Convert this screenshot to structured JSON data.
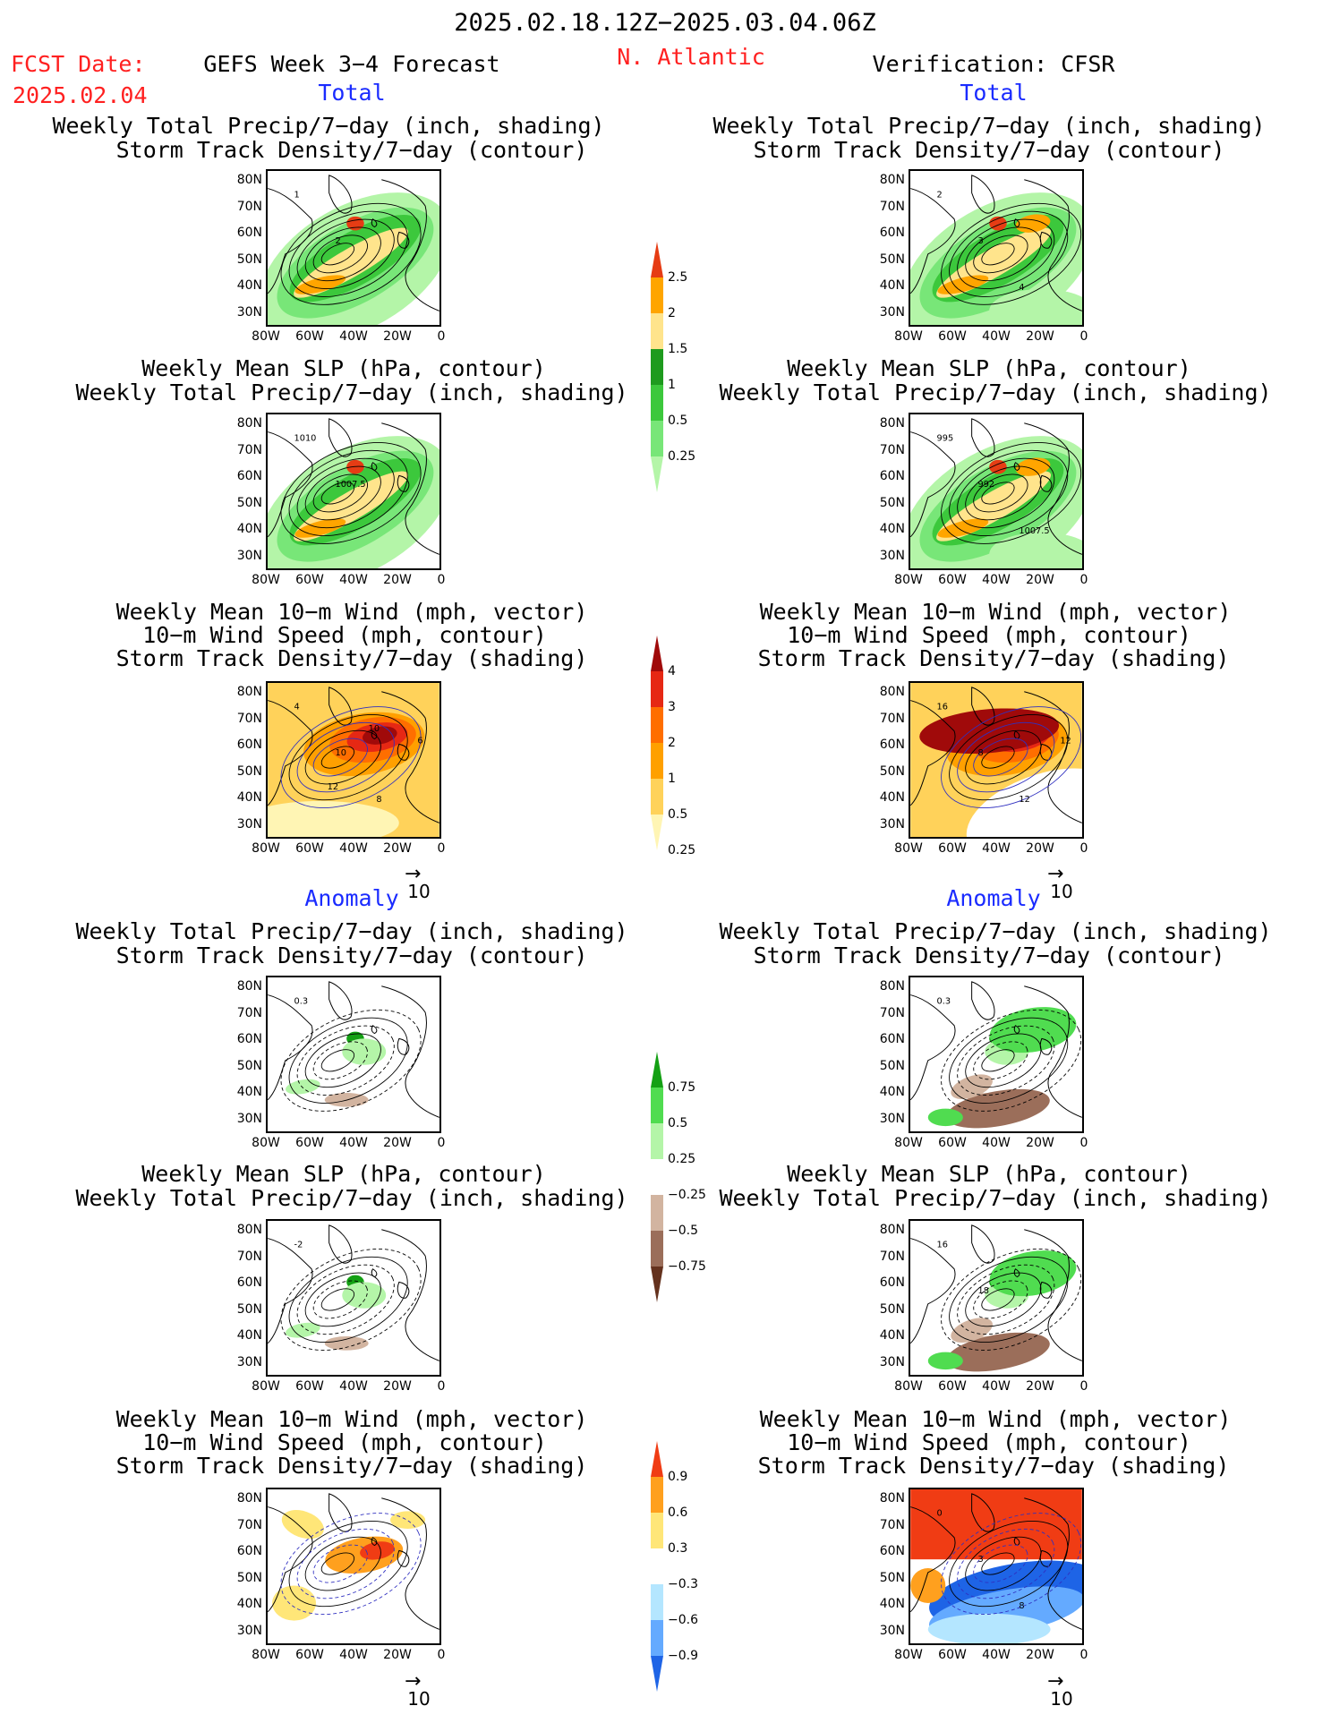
{
  "header": {
    "date_range": "2025.02.18.12Z−2025.03.04.06Z",
    "fcst_label": "FCST Date:",
    "fcst_date": "2025.02.04",
    "model": "GEFS Week 3−4 Forecast",
    "region": "N. Atlantic",
    "verification": "Verification: CFSR",
    "total_left": "Total",
    "total_right": "Total",
    "anomaly_left": "Anomaly",
    "anomaly_right": "Anomaly"
  },
  "titles": {
    "precip_a": "Weekly Total Precip/7−day (inch, shading)",
    "precip_b": "Storm Track Density/7−day (contour)",
    "slp_a": "Weekly Mean SLP (hPa, contour)",
    "slp_b": "Weekly Total Precip/7−day (inch, shading)",
    "wind_a": "Weekly Mean 10−m Wind (mph, vector)",
    "wind_b": "10−m Wind Speed (mph, contour)",
    "wind_c": "Storm Track Density/7−day (shading)"
  },
  "axes": {
    "y_ticks": [
      "80N",
      "70N",
      "60N",
      "50N",
      "40N",
      "30N"
    ],
    "x_ticks": [
      "80W",
      "60W",
      "40W",
      "20W",
      "0"
    ],
    "vector_ref": "10"
  },
  "contour_labels": {
    "p1l": [
      "1",
      "2"
    ],
    "p1r": [
      "2",
      "3",
      "4"
    ],
    "p2l": [
      "1010",
      "1007.5"
    ],
    "p2r": [
      "995",
      "992",
      "1007.5"
    ],
    "p3l": [
      "4",
      "10",
      "8",
      "6",
      "12",
      "10"
    ],
    "p3r": [
      "16",
      "8",
      "12",
      "12"
    ],
    "p4l": [
      "0.3"
    ],
    "p4r": [
      "0.3"
    ],
    "p5l": [
      "-2"
    ],
    "p5r": [
      "16",
      "18"
    ],
    "p6r": [
      "0",
      "3",
      "8"
    ]
  },
  "colors": {
    "precip": [
      "#b4f5a8",
      "#78e678",
      "#3cc83c",
      "#1e9b1e",
      "#ffe48c",
      "#ffa500",
      "#e63c14"
    ],
    "std": [
      "#fff5b4",
      "#ffd25a",
      "#ffa000",
      "#ff6e00",
      "#e62814",
      "#a00a0a"
    ],
    "precip_anom": [
      "#64321e",
      "#9b6e5a",
      "#d2b4a0",
      "#ffffff",
      "#b4f5a8",
      "#50dc50",
      "#14a014"
    ],
    "std_anom": [
      "#1e64e6",
      "#64aaff",
      "#b4e6ff",
      "#ffffff",
      "#ffe678",
      "#ffa01e",
      "#f03c14"
    ],
    "text_red": "#ff2020",
    "text_blue": "#1a2bff"
  },
  "chart_data": [
    {
      "type": "heatmap",
      "title": "Weekly Total Precip/7−day (inch, shading) / Storm Track Density/7−day (contour)",
      "panel": "forecast total",
      "levels": [
        0.25,
        0.5,
        1,
        1.5,
        2,
        2.5
      ],
      "xlim": [
        "80W",
        "0"
      ],
      "ylim": [
        "25N",
        "85N"
      ]
    },
    {
      "type": "heatmap",
      "title": "Weekly Total Precip/7−day (inch, shading) / Storm Track Density/7−day (contour)",
      "panel": "verification total",
      "levels": [
        0.25,
        0.5,
        1,
        1.5,
        2,
        2.5
      ]
    },
    {
      "type": "heatmap",
      "title": "Weekly Mean SLP (hPa, contour) / Weekly Total Precip/7−day (inch, shading)",
      "panel": "forecast total",
      "levels": [
        0.25,
        0.5,
        1,
        1.5,
        2,
        2.5
      ]
    },
    {
      "type": "heatmap",
      "title": "Weekly Mean SLP (hPa, contour) / Weekly Total Precip/7−day (inch, shading)",
      "panel": "verification total",
      "levels": [
        0.25,
        0.5,
        1,
        1.5,
        2,
        2.5
      ]
    },
    {
      "type": "heatmap",
      "title": "Weekly Mean 10−m Wind / 10−m Wind Speed / Storm Track Density/7−day (shading)",
      "panel": "forecast total",
      "levels": [
        0.25,
        0.5,
        1,
        2,
        3,
        4
      ]
    },
    {
      "type": "heatmap",
      "title": "Weekly Mean 10−m Wind / 10−m Wind Speed / Storm Track Density/7−day (shading)",
      "panel": "verification total",
      "levels": [
        0.25,
        0.5,
        1,
        2,
        3,
        4
      ]
    },
    {
      "type": "heatmap",
      "title": "Weekly Total Precip/7−day (inch, shading) / Storm Track Density/7−day (contour)",
      "panel": "forecast anomaly",
      "levels": [
        -0.75,
        -0.5,
        -0.25,
        0.25,
        0.5,
        0.75
      ]
    },
    {
      "type": "heatmap",
      "title": "Weekly Total Precip/7−day (inch, shading) / Storm Track Density/7−day (contour)",
      "panel": "verification anomaly",
      "levels": [
        -0.75,
        -0.5,
        -0.25,
        0.25,
        0.5,
        0.75
      ]
    },
    {
      "type": "heatmap",
      "title": "Weekly Mean SLP (hPa, contour) / Weekly Total Precip/7−day (inch, shading)",
      "panel": "forecast anomaly",
      "levels": [
        -0.75,
        -0.5,
        -0.25,
        0.25,
        0.5,
        0.75
      ]
    },
    {
      "type": "heatmap",
      "title": "Weekly Mean SLP (hPa, contour) / Weekly Total Precip/7−day (inch, shading)",
      "panel": "verification anomaly",
      "levels": [
        -0.75,
        -0.5,
        -0.25,
        0.25,
        0.5,
        0.75
      ]
    },
    {
      "type": "heatmap",
      "title": "Weekly Mean 10−m Wind / 10−m Wind Speed / Storm Track Density/7−day (shading)",
      "panel": "forecast anomaly",
      "levels": [
        -0.9,
        -0.6,
        -0.3,
        0.3,
        0.6,
        0.9
      ]
    },
    {
      "type": "heatmap",
      "title": "Weekly Mean 10−m Wind / 10−m Wind Speed / Storm Track Density/7−day (shading)",
      "panel": "verification anomaly",
      "levels": [
        -0.9,
        -0.6,
        -0.3,
        0.3,
        0.6,
        0.9
      ]
    }
  ],
  "colorbars": [
    {
      "labels": [
        "2.5",
        "2",
        "1.5",
        "1",
        "0.5",
        "0.25"
      ]
    },
    {
      "labels": [
        "4",
        "3",
        "2",
        "1",
        "0.5",
        "0.25"
      ]
    },
    {
      "labels": [
        "0.75",
        "0.5",
        "0.25",
        "−0.25",
        "−0.5",
        "−0.75"
      ]
    },
    {
      "labels": [
        "0.9",
        "0.6",
        "0.3",
        "−0.3",
        "−0.6",
        "−0.9"
      ]
    }
  ]
}
